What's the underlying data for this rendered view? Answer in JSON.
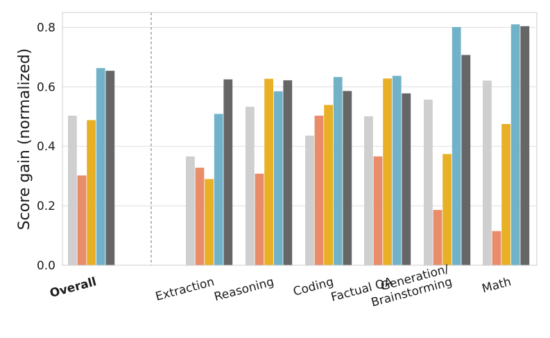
{
  "chart_data": {
    "type": "bar",
    "title": "",
    "xlabel": "",
    "ylabel": "Score gain (normalized)",
    "ylim": [
      0,
      0.85
    ],
    "yticks": [
      0.0,
      0.2,
      0.4,
      0.6,
      0.8
    ],
    "ytick_labels": [
      "0.0",
      "0.2",
      "0.4",
      "0.6",
      "0.8"
    ],
    "grid": true,
    "legend": "none",
    "categories": [
      "Overall",
      "Extraction",
      "Reasoning",
      "Coding",
      "Factual QA",
      "Generation/ Brainstorming",
      "Math"
    ],
    "category_lines": [
      [
        "Overall"
      ],
      [
        "Extraction"
      ],
      [
        "Reasoning"
      ],
      [
        "Coding"
      ],
      [
        "Factual QA"
      ],
      [
        "Generation/",
        "Brainstorming"
      ],
      [
        "Math"
      ]
    ],
    "series_colors": [
      "#cfcfcf",
      "#e88c6a",
      "#e8b026",
      "#72b2c9",
      "#666666"
    ],
    "series": [
      {
        "values": [
          0.503,
          0.366,
          0.533,
          0.436,
          0.501,
          0.557,
          0.621
        ]
      },
      {
        "values": [
          0.302,
          0.328,
          0.308,
          0.503,
          0.366,
          0.186,
          0.115
        ]
      },
      {
        "values": [
          0.488,
          0.29,
          0.627,
          0.539,
          0.628,
          0.374,
          0.475
        ]
      },
      {
        "values": [
          0.663,
          0.509,
          0.585,
          0.633,
          0.637,
          0.801,
          0.81
        ]
      },
      {
        "values": [
          0.654,
          0.625,
          0.622,
          0.586,
          0.578,
          0.707,
          0.804
        ]
      }
    ],
    "separator": "dashed"
  }
}
